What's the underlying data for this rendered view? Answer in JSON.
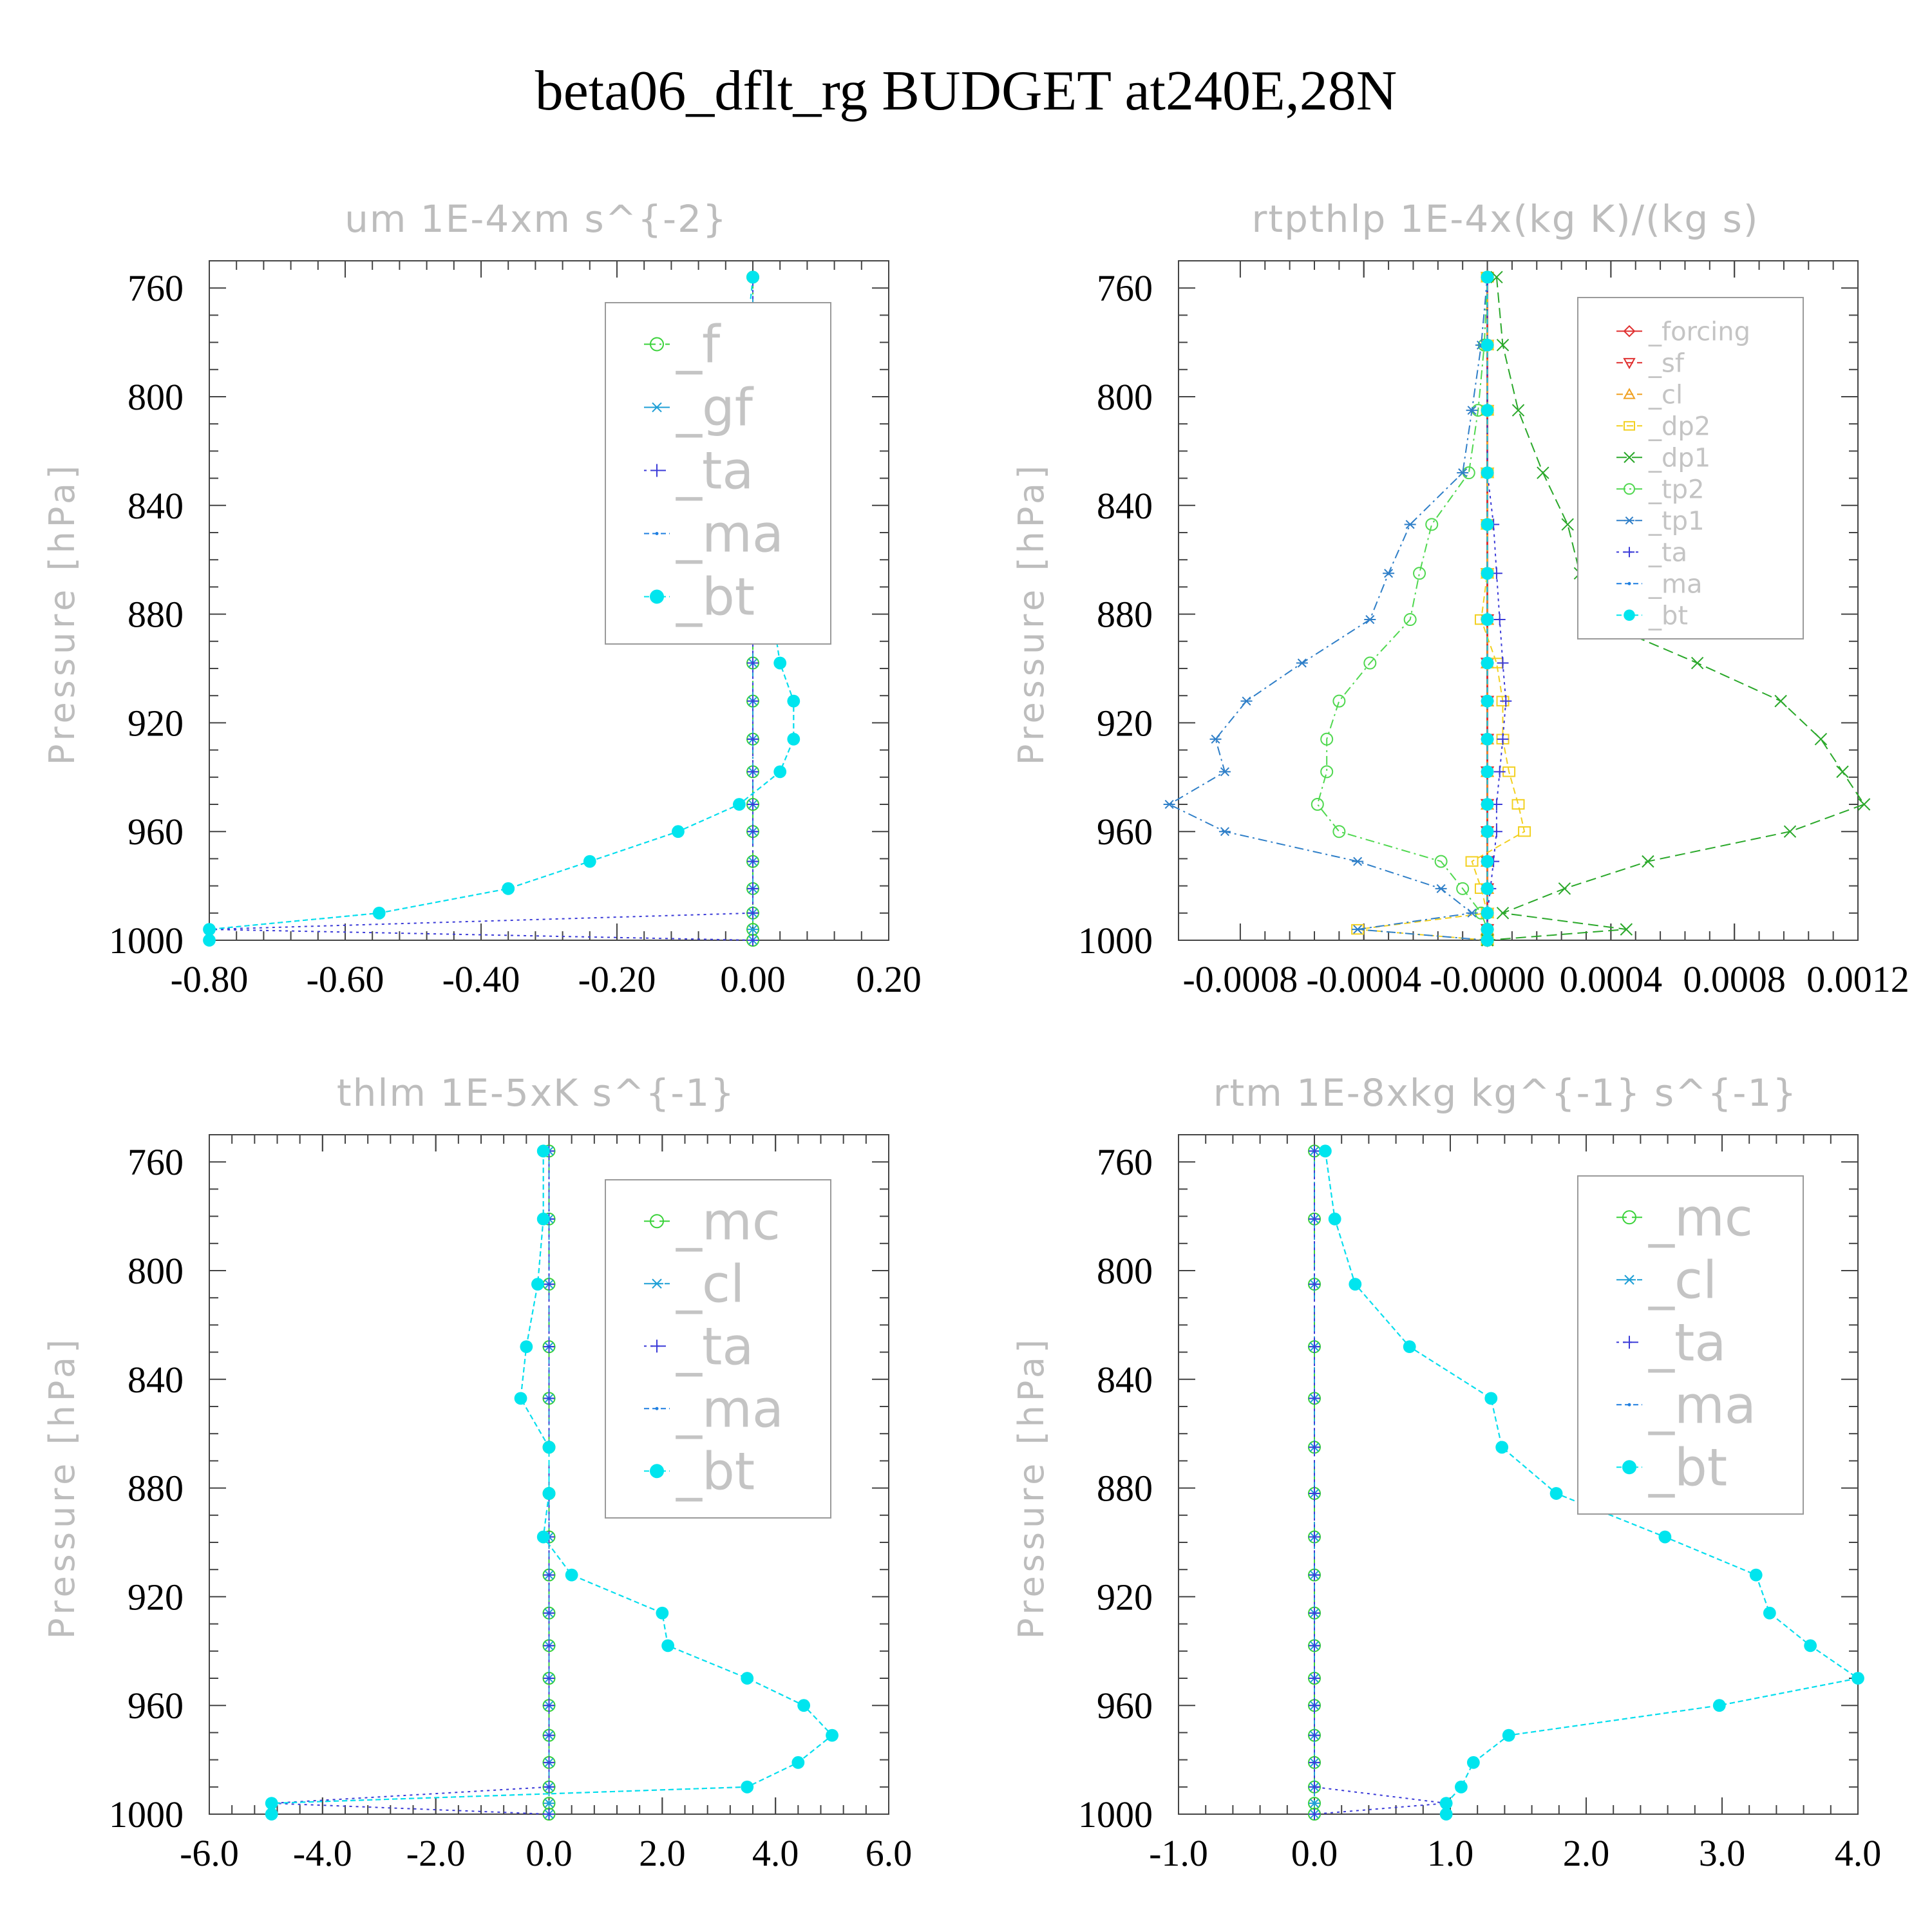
{
  "title": "beta06_dflt_rg  BUDGET at240E,28N",
  "colors": {
    "_f": "#39d239",
    "_gf": "#1f9fd6",
    "_ta": "#3b3bd8",
    "_ma": "#1f7fe0",
    "_bt": "#00e5ee",
    "_forcing": "#e03030",
    "_sf": "#e03030",
    "_cl": "#f0a020",
    "_dp2": "#f2d020",
    "_dp1": "#2aa82a",
    "_tp2": "#50d850",
    "_tp1": "#2f7fc8",
    "_mc": "#39d239",
    "_cl_b": "#1f9fd6"
  },
  "chart_data": [
    {
      "type": "line",
      "title": "um  1E-4xm s^{-2}",
      "ylabel": "Pressure [hPa]",
      "xlim": [
        -0.8,
        0.2
      ],
      "ylim": [
        1000,
        750
      ],
      "xticks": [
        "-0.80",
        "-0.60",
        "-0.40",
        "-0.20",
        "0.00",
        "0.20"
      ],
      "yticks": [
        "760",
        "800",
        "840",
        "880",
        "920",
        "960",
        "1000"
      ],
      "legend": "top-right",
      "y": [
        756,
        781,
        805,
        828,
        847,
        865,
        882,
        898,
        912,
        926,
        938,
        950,
        960,
        971,
        981,
        990,
        996,
        1000
      ],
      "series": [
        {
          "name": "_f",
          "marker": "circle",
          "values": [
            0,
            0,
            0,
            0,
            0,
            0,
            0,
            0,
            0,
            0,
            0,
            0,
            0,
            0,
            0,
            0,
            0,
            0
          ]
        },
        {
          "name": "_gf",
          "marker": "star",
          "values": [
            0,
            0,
            0,
            0,
            0,
            0,
            0,
            0,
            0,
            0,
            0,
            0,
            0,
            0,
            0,
            0,
            0,
            0
          ]
        },
        {
          "name": "_ta",
          "marker": "plus",
          "values": [
            0,
            0,
            0,
            0,
            0,
            0,
            0,
            0,
            0,
            0,
            0,
            0,
            0,
            0,
            0,
            0,
            -0.8,
            0
          ]
        },
        {
          "name": "_ma",
          "marker": "dot",
          "values": [
            0,
            -0.01,
            -0.01,
            -0.01,
            0.01,
            0.02,
            0.03,
            0.04,
            0.06,
            0.06,
            0.04,
            -0.02,
            -0.11,
            -0.24,
            -0.36,
            -0.55,
            -0.8,
            -0.8
          ]
        },
        {
          "name": "_bt",
          "marker": "bigdot",
          "values": [
            0,
            -0.01,
            -0.01,
            -0.01,
            0.01,
            0.02,
            0.03,
            0.04,
            0.06,
            0.06,
            0.04,
            -0.02,
            -0.11,
            -0.24,
            -0.36,
            -0.55,
            -0.8,
            -0.8
          ]
        }
      ]
    },
    {
      "type": "line",
      "title": "rtpthlp  1E-4x(kg K)/(kg s)",
      "ylabel": "Pressure [hPa]",
      "xlim": [
        -0.001,
        0.0012
      ],
      "ylim": [
        1000,
        750
      ],
      "xticks": [
        "-0.0008",
        "-0.0004",
        "-0.0000",
        "0.0004",
        "0.0008",
        "0.0012"
      ],
      "yticks": [
        "760",
        "800",
        "840",
        "880",
        "920",
        "960",
        "1000"
      ],
      "legend": "top-right",
      "y": [
        756,
        781,
        805,
        828,
        847,
        865,
        882,
        898,
        912,
        926,
        938,
        950,
        960,
        971,
        981,
        990,
        996,
        1000
      ],
      "series": [
        {
          "name": "_forcing",
          "marker": "diamond",
          "values": [
            0,
            0,
            0,
            0,
            0,
            0,
            0,
            0,
            0,
            0,
            0,
            0,
            0,
            0,
            0,
            0,
            0,
            0
          ]
        },
        {
          "name": "_sf",
          "marker": "tridown",
          "values": [
            0,
            0,
            0,
            0,
            0,
            0,
            0,
            0,
            0,
            0,
            0,
            0,
            0,
            0,
            0,
            0,
            0,
            0
          ]
        },
        {
          "name": "_cl",
          "marker": "triup",
          "values": [
            0,
            0,
            0,
            0,
            0,
            0,
            0,
            0,
            0,
            0,
            0,
            0,
            0,
            0,
            0,
            0,
            0,
            0
          ]
        },
        {
          "name": "_dp2",
          "marker": "square",
          "values": [
            0,
            0,
            0,
            0,
            0,
            0,
            -2e-05,
            3e-05,
            5e-05,
            5e-05,
            7e-05,
            0.0001,
            0.00012,
            -5e-05,
            -2e-05,
            0,
            -0.00042,
            0
          ]
        },
        {
          "name": "_dp1",
          "marker": "x",
          "values": [
            3e-05,
            5e-05,
            0.0001,
            0.00018,
            0.00026,
            0.0003,
            0.00035,
            0.00068,
            0.00095,
            0.00108,
            0.00115,
            0.00122,
            0.00098,
            0.00052,
            0.00025,
            5e-05,
            0.00045,
            0
          ]
        },
        {
          "name": "_tp2",
          "marker": "circle",
          "values": [
            0,
            -1e-05,
            -3e-05,
            -6e-05,
            -0.00018,
            -0.00022,
            -0.00025,
            -0.00038,
            -0.00048,
            -0.00052,
            -0.00052,
            -0.00055,
            -0.00048,
            -0.00015,
            -8e-05,
            -2e-05,
            0,
            0
          ]
        },
        {
          "name": "_tp1",
          "marker": "star",
          "values": [
            0,
            -2e-05,
            -5e-05,
            -8e-05,
            -0.00025,
            -0.00032,
            -0.00038,
            -0.0006,
            -0.00078,
            -0.00088,
            -0.00085,
            -0.00103,
            -0.00085,
            -0.00042,
            -0.00015,
            -5e-05,
            -0.00042,
            0
          ]
        },
        {
          "name": "_ta",
          "marker": "plus",
          "values": [
            0,
            0,
            0,
            0,
            2e-05,
            3e-05,
            4e-05,
            5e-05,
            6e-05,
            5e-05,
            4e-05,
            3e-05,
            3e-05,
            2e-05,
            1e-05,
            0,
            0,
            0
          ]
        },
        {
          "name": "_ma",
          "marker": "dot",
          "values": [
            0,
            0,
            0,
            0,
            0,
            0,
            0,
            0,
            0,
            0,
            0,
            0,
            0,
            0,
            0,
            0,
            0,
            0
          ]
        },
        {
          "name": "_bt",
          "marker": "bigdot",
          "values": [
            0,
            0,
            0,
            0,
            0,
            0,
            0,
            0,
            0,
            0,
            0,
            0,
            0,
            0,
            0,
            0,
            0,
            0
          ]
        }
      ]
    },
    {
      "type": "line",
      "title": "thlm  1E-5xK s^{-1}",
      "ylabel": "Pressure [hPa]",
      "xlim": [
        -6.0,
        6.0
      ],
      "ylim": [
        1000,
        750
      ],
      "xticks": [
        "-6.0",
        "-4.0",
        "-2.0",
        "0.0",
        "2.0",
        "4.0",
        "6.0"
      ],
      "yticks": [
        "760",
        "800",
        "840",
        "880",
        "920",
        "960",
        "1000"
      ],
      "legend": "top-right",
      "y": [
        756,
        781,
        805,
        828,
        847,
        865,
        882,
        898,
        912,
        926,
        938,
        950,
        960,
        971,
        981,
        990,
        996,
        1000
      ],
      "series": [
        {
          "name": "_mc",
          "marker": "circle",
          "values": [
            0,
            0,
            0,
            0,
            0,
            0,
            0,
            0,
            0,
            0,
            0,
            0,
            0,
            0,
            0,
            0,
            0,
            0
          ]
        },
        {
          "name": "_cl",
          "marker": "star",
          "values": [
            0,
            0,
            0,
            0,
            0,
            0,
            0,
            0,
            0,
            0,
            0,
            0,
            0,
            0,
            0,
            0,
            0,
            0
          ]
        },
        {
          "name": "_ta",
          "marker": "plus",
          "values": [
            0,
            0,
            0,
            0,
            0,
            0,
            0,
            0,
            0,
            0,
            0,
            0,
            0,
            0,
            0,
            0,
            -4.9,
            0
          ]
        },
        {
          "name": "_ma",
          "marker": "dot",
          "values": [
            -0.1,
            -0.1,
            -0.2,
            -0.4,
            -0.5,
            0,
            0,
            -0.1,
            0.4,
            2.0,
            2.1,
            3.5,
            4.5,
            5.0,
            4.4,
            3.5,
            -4.9,
            -4.9
          ]
        },
        {
          "name": "_bt",
          "marker": "bigdot",
          "values": [
            -0.1,
            -0.1,
            -0.2,
            -0.4,
            -0.5,
            0,
            0,
            -0.1,
            0.4,
            2.0,
            2.1,
            3.5,
            4.5,
            5.0,
            4.4,
            3.5,
            -4.9,
            -4.9
          ]
        }
      ]
    },
    {
      "type": "line",
      "title": "rtm  1E-8xkg kg^{-1} s^{-1}",
      "ylabel": "Pressure [hPa]",
      "xlim": [
        -1.0,
        4.0
      ],
      "ylim": [
        1000,
        750
      ],
      "xticks": [
        "-1.0",
        "0.0",
        "1.0",
        "2.0",
        "3.0",
        "4.0"
      ],
      "yticks": [
        "760",
        "800",
        "840",
        "880",
        "920",
        "960",
        "1000"
      ],
      "legend": "top-right",
      "y": [
        756,
        781,
        805,
        828,
        847,
        865,
        882,
        898,
        912,
        926,
        938,
        950,
        960,
        971,
        981,
        990,
        996,
        1000
      ],
      "series": [
        {
          "name": "_mc",
          "marker": "circle",
          "values": [
            0,
            0,
            0,
            0,
            0,
            0,
            0,
            0,
            0,
            0,
            0,
            0,
            0,
            0,
            0,
            0,
            0,
            0
          ]
        },
        {
          "name": "_cl",
          "marker": "star",
          "values": [
            0,
            0,
            0,
            0,
            0,
            0,
            0,
            0,
            0,
            0,
            0,
            0,
            0,
            0,
            0,
            0,
            0,
            0
          ]
        },
        {
          "name": "_ta",
          "marker": "plus",
          "values": [
            0,
            0,
            0,
            0,
            0,
            0,
            0,
            0,
            0,
            0,
            0,
            0,
            0,
            0,
            0,
            0,
            0.97,
            0
          ]
        },
        {
          "name": "_ma",
          "marker": "dot",
          "values": [
            0.08,
            0.15,
            0.3,
            0.7,
            1.3,
            1.38,
            1.78,
            2.58,
            3.25,
            3.35,
            3.65,
            4.0,
            2.98,
            1.43,
            1.17,
            1.08,
            0.97,
            0.97
          ]
        },
        {
          "name": "_bt",
          "marker": "bigdot",
          "values": [
            0.08,
            0.15,
            0.3,
            0.7,
            1.3,
            1.38,
            1.78,
            2.58,
            3.25,
            3.35,
            3.65,
            4.0,
            2.98,
            1.43,
            1.17,
            1.08,
            0.97,
            0.97
          ]
        }
      ]
    }
  ]
}
